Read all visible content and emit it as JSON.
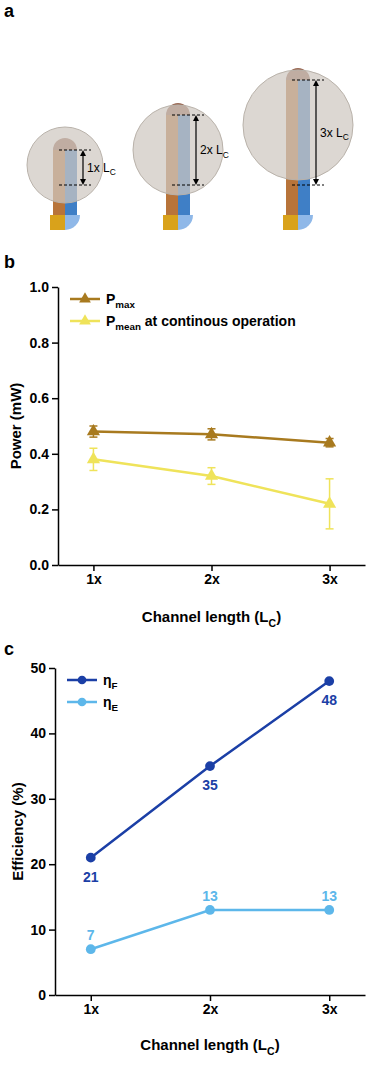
{
  "schematic": {
    "panel_label": "a",
    "labels": [
      [
        "1x L",
        "C"
      ],
      [
        "2x L",
        "C"
      ],
      [
        "3x L",
        "C"
      ]
    ]
  },
  "chart_data": [
    {
      "type": "line",
      "panel_label": "b",
      "categories": [
        "1x",
        "2x",
        "3x"
      ],
      "x_label": [
        "Channel length (L",
        "C",
        ")"
      ],
      "y_label": "Power (mW)",
      "ylim": [
        0,
        1.0
      ],
      "yticks": [
        {
          "value": 0,
          "label": "0.0"
        },
        0.2,
        0.4,
        0.6,
        0.8,
        {
          "value": 1.0,
          "label": "1.0"
        }
      ],
      "legend": "top-left",
      "series": [
        {
          "name": [
            "P",
            "max"
          ],
          "color": "#a87a1f",
          "marker": "triangle",
          "values": [
            0.48,
            0.47,
            0.44
          ],
          "errors": [
            0.02,
            0.02,
            0.015
          ]
        },
        {
          "name": [
            "P",
            "mean",
            " at continous operation"
          ],
          "color": "#efe35a",
          "marker": "triangle",
          "values": [
            0.38,
            0.32,
            0.22
          ],
          "errors": [
            0.04,
            0.03,
            0.09
          ]
        }
      ]
    },
    {
      "type": "line",
      "panel_label": "c",
      "categories": [
        "1x",
        "2x",
        "3x"
      ],
      "x_label": [
        "Channel length (L",
        "C",
        ")"
      ],
      "y_label": "Efficiency (%)",
      "ylim": [
        0,
        50
      ],
      "yticks": [
        0,
        10,
        20,
        30,
        40,
        50
      ],
      "legend": "top-left",
      "data_labels": true,
      "series": [
        {
          "name": [
            "η",
            "F"
          ],
          "color": "#1b3fa6",
          "marker": "circle",
          "values": [
            21,
            35,
            48
          ]
        },
        {
          "name": [
            "η",
            "E"
          ],
          "color": "#5db7ea",
          "marker": "circle",
          "values": [
            7,
            13,
            13
          ]
        }
      ]
    }
  ]
}
